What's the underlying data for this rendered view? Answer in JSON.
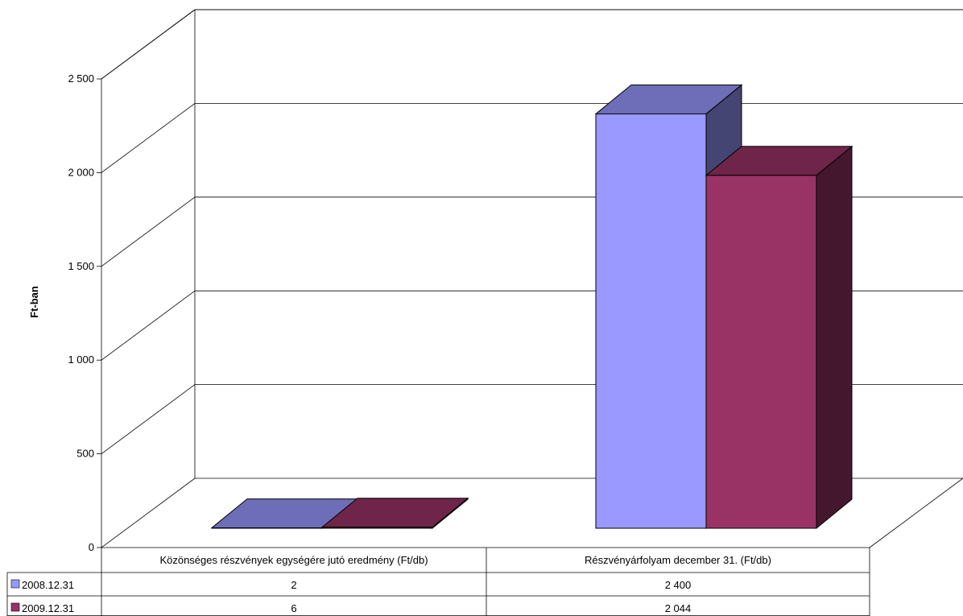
{
  "chart_data": {
    "type": "bar",
    "subtype": "3d-clustered-column-with-data-table",
    "title": "",
    "xlabel": "",
    "ylabel": "Ft-ban",
    "ylim": [
      0,
      2500
    ],
    "yticks": [
      "0",
      "500",
      "1 000",
      "1 500",
      "2 000",
      "2 500"
    ],
    "grid": true,
    "categories": [
      "Közönséges részvények egységére jutó eredmény (Ft/db)",
      "Részvényárfolyam december 31. (Ft/db)"
    ],
    "series": [
      {
        "name": "2008.12.31",
        "values": [
          2,
          2400
        ],
        "labels": [
          "2",
          "2 400"
        ],
        "color": "#9999ff"
      },
      {
        "name": "2009.12.31",
        "values": [
          6,
          2044
        ],
        "labels": [
          "6",
          "2 044"
        ],
        "color": "#993366"
      }
    ]
  }
}
